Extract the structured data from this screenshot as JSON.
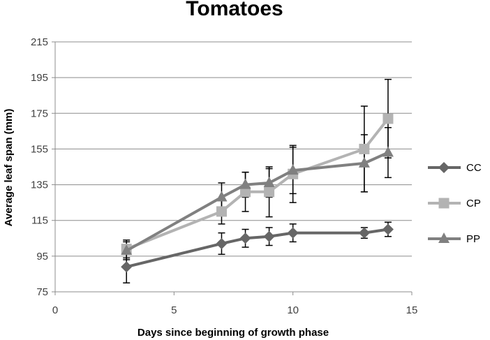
{
  "chart_data": {
    "type": "line",
    "title": "Tomatoes",
    "xlabel": "Days since beginning of growth phase",
    "ylabel": "Average leaf span (mm)",
    "xlim": [
      0,
      15
    ],
    "ylim": [
      75,
      215
    ],
    "xticks": [
      0,
      5,
      10,
      15
    ],
    "yticks": [
      75,
      95,
      115,
      135,
      155,
      175,
      195,
      215
    ],
    "grid": "horizontal",
    "legend_position": "right",
    "series": [
      {
        "name": "CC",
        "color": "#666666",
        "marker": "diamond",
        "x": [
          3,
          7,
          8,
          9,
          10,
          13,
          14
        ],
        "y": [
          89,
          102,
          105,
          106,
          108,
          108,
          110
        ],
        "error": [
          9,
          6,
          5,
          5,
          5,
          3,
          4
        ]
      },
      {
        "name": "CP",
        "color": "#b3b3b3",
        "marker": "square",
        "x": [
          3,
          7,
          8,
          9,
          10,
          13,
          14
        ],
        "y": [
          99,
          120,
          131,
          131,
          141,
          155,
          172
        ],
        "error": [
          5,
          7,
          11,
          14,
          16,
          24,
          22
        ]
      },
      {
        "name": "PP",
        "color": "#808080",
        "marker": "triangle",
        "x": [
          3,
          7,
          8,
          9,
          10,
          13,
          14
        ],
        "y": [
          98,
          128,
          135,
          136,
          143,
          147,
          153
        ],
        "error": [
          5,
          8,
          7,
          8,
          13,
          16,
          14
        ]
      }
    ]
  }
}
